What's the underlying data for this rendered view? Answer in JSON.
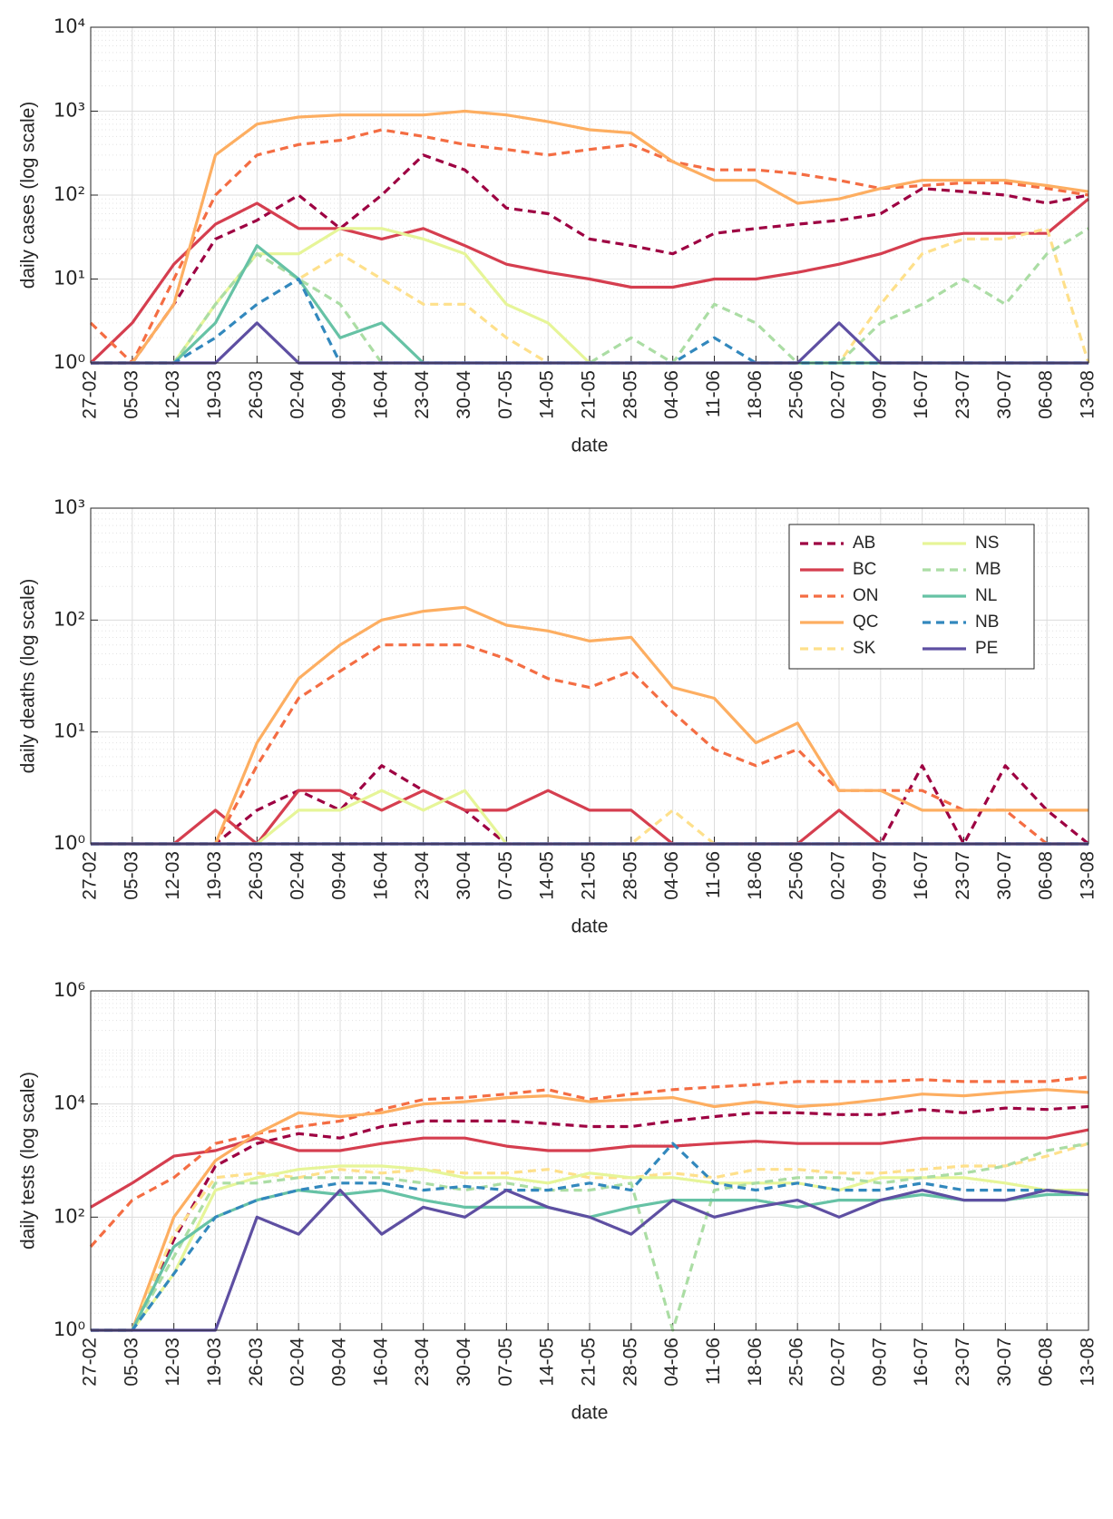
{
  "chart_data": [
    {
      "type": "line",
      "ylabel": "daily cases (log scale)",
      "xlabel": "date",
      "log": true,
      "grid": true,
      "categories": [
        "27-02",
        "05-03",
        "12-03",
        "19-03",
        "26-03",
        "02-04",
        "09-04",
        "16-04",
        "23-04",
        "30-04",
        "07-05",
        "14-05",
        "21-05",
        "28-05",
        "04-06",
        "11-06",
        "18-06",
        "25-06",
        "02-07",
        "09-07",
        "16-07",
        "23-07",
        "30-07",
        "06-08",
        "13-08"
      ],
      "ylim": [
        1,
        10000
      ],
      "yticks": [
        {
          "value": 1,
          "label": "10⁰"
        },
        {
          "value": 10,
          "label": "10¹"
        },
        {
          "value": 100,
          "label": "10²"
        },
        {
          "value": 1000,
          "label": "10³"
        },
        {
          "value": 10000,
          "label": "10⁴"
        }
      ],
      "series": [
        {
          "color": "#9e0142",
          "style": "dashed",
          "values": [
            1,
            1,
            5,
            30,
            50,
            100,
            40,
            100,
            300,
            200,
            70,
            60,
            30,
            25,
            20,
            35,
            40,
            45,
            50,
            60,
            120,
            110,
            100,
            80,
            100
          ]
        },
        {
          "color": "#d53e4f",
          "style": "solid",
          "values": [
            1,
            3,
            15,
            45,
            80,
            40,
            40,
            30,
            40,
            25,
            15,
            12,
            10,
            8,
            8,
            10,
            10,
            12,
            15,
            20,
            30,
            35,
            35,
            35,
            90
          ]
        },
        {
          "color": "#f46d43",
          "style": "dashed",
          "values": [
            3,
            1,
            10,
            100,
            300,
            400,
            450,
            600,
            500,
            400,
            350,
            300,
            350,
            400,
            250,
            200,
            200,
            180,
            150,
            120,
            130,
            140,
            140,
            120,
            100
          ]
        },
        {
          "color": "#fdae61",
          "style": "solid",
          "values": [
            1,
            1,
            5,
            300,
            700,
            850,
            900,
            900,
            900,
            1000,
            900,
            750,
            600,
            550,
            250,
            150,
            150,
            80,
            90,
            120,
            150,
            150,
            150,
            130,
            110
          ]
        },
        {
          "color": "#fee08b",
          "style": "dashed",
          "values": [
            1,
            1,
            1,
            5,
            20,
            10,
            20,
            10,
            5,
            5,
            2,
            1,
            1,
            1,
            1,
            1,
            1,
            1,
            1,
            5,
            20,
            30,
            30,
            40,
            1
          ]
        },
        {
          "color": "#e6f598",
          "style": "solid",
          "values": [
            1,
            1,
            1,
            5,
            20,
            20,
            40,
            40,
            30,
            20,
            5,
            3,
            1,
            1,
            1,
            1,
            1,
            1,
            1,
            1,
            1,
            1,
            1,
            1,
            1
          ]
        },
        {
          "color": "#abdda4",
          "style": "dashed",
          "values": [
            1,
            1,
            1,
            5,
            20,
            10,
            5,
            1,
            1,
            1,
            1,
            1,
            1,
            2,
            1,
            5,
            3,
            1,
            1,
            3,
            5,
            10,
            5,
            20,
            40
          ]
        },
        {
          "color": "#66c2a5",
          "style": "solid",
          "values": [
            1,
            1,
            1,
            3,
            25,
            10,
            2,
            3,
            1,
            1,
            1,
            1,
            1,
            1,
            1,
            1,
            1,
            1,
            1,
            1,
            1,
            1,
            1,
            1,
            1
          ]
        },
        {
          "color": "#3288bd",
          "style": "dashed",
          "values": [
            1,
            1,
            1,
            2,
            5,
            10,
            1,
            1,
            1,
            1,
            1,
            1,
            1,
            1,
            1,
            2,
            1,
            1,
            1,
            1,
            1,
            1,
            1,
            1,
            1
          ]
        },
        {
          "color": "#5e4fa2",
          "style": "solid",
          "values": [
            1,
            1,
            1,
            1,
            3,
            1,
            1,
            1,
            1,
            1,
            1,
            1,
            1,
            1,
            1,
            1,
            1,
            1,
            3,
            1,
            1,
            1,
            1,
            1,
            1
          ]
        }
      ]
    },
    {
      "type": "line",
      "ylabel": "daily deaths (log scale)",
      "xlabel": "date",
      "log": true,
      "grid": true,
      "legend": "upper right",
      "categories": [
        "27-02",
        "05-03",
        "12-03",
        "19-03",
        "26-03",
        "02-04",
        "09-04",
        "16-04",
        "23-04",
        "30-04",
        "07-05",
        "14-05",
        "21-05",
        "28-05",
        "04-06",
        "11-06",
        "18-06",
        "25-06",
        "02-07",
        "09-07",
        "16-07",
        "23-07",
        "30-07",
        "06-08",
        "13-08"
      ],
      "ylim": [
        1,
        1000
      ],
      "yticks": [
        {
          "value": 1,
          "label": "10⁰"
        },
        {
          "value": 10,
          "label": "10¹"
        },
        {
          "value": 100,
          "label": "10²"
        },
        {
          "value": 1000,
          "label": "10³"
        }
      ],
      "series": [
        {
          "name": "AB",
          "color": "#9e0142",
          "style": "dashed",
          "values": [
            1,
            1,
            1,
            1,
            2,
            3,
            2,
            5,
            3,
            2,
            1,
            1,
            1,
            1,
            1,
            1,
            1,
            1,
            1,
            1,
            5,
            1,
            5,
            2,
            1
          ]
        },
        {
          "name": "BC",
          "color": "#d53e4f",
          "style": "solid",
          "values": [
            1,
            1,
            1,
            2,
            1,
            3,
            3,
            2,
            3,
            2,
            2,
            3,
            2,
            2,
            1,
            1,
            1,
            1,
            2,
            1,
            1,
            1,
            1,
            1,
            1
          ]
        },
        {
          "name": "ON",
          "color": "#f46d43",
          "style": "dashed",
          "values": [
            1,
            1,
            1,
            1,
            5,
            20,
            35,
            60,
            60,
            60,
            45,
            30,
            25,
            35,
            15,
            7,
            5,
            7,
            3,
            3,
            3,
            2,
            2,
            1,
            1
          ]
        },
        {
          "name": "QC",
          "color": "#fdae61",
          "style": "solid",
          "values": [
            1,
            1,
            1,
            1,
            8,
            30,
            60,
            100,
            120,
            130,
            90,
            80,
            65,
            70,
            25,
            20,
            8,
            12,
            3,
            3,
            2,
            2,
            2,
            2,
            2
          ]
        },
        {
          "name": "SK",
          "color": "#fee08b",
          "style": "dashed",
          "values": [
            1,
            1,
            1,
            1,
            1,
            1,
            1,
            1,
            1,
            1,
            1,
            1,
            1,
            1,
            2,
            1,
            1,
            1,
            1,
            1,
            1,
            1,
            1,
            1,
            1
          ]
        },
        {
          "name": "NS",
          "color": "#e6f598",
          "style": "solid",
          "values": [
            1,
            1,
            1,
            1,
            1,
            2,
            2,
            3,
            2,
            3,
            1,
            1,
            1,
            1,
            1,
            1,
            1,
            1,
            1,
            1,
            1,
            1,
            1,
            1,
            1
          ]
        },
        {
          "name": "MB",
          "color": "#abdda4",
          "style": "dashed",
          "values": [
            1,
            1,
            1,
            1,
            1,
            1,
            1,
            1,
            1,
            1,
            1,
            1,
            1,
            1,
            1,
            1,
            1,
            1,
            1,
            1,
            1,
            1,
            1,
            1,
            1
          ]
        },
        {
          "name": "NL",
          "color": "#66c2a5",
          "style": "solid",
          "values": [
            1,
            1,
            1,
            1,
            1,
            1,
            1,
            1,
            1,
            1,
            1,
            1,
            1,
            1,
            1,
            1,
            1,
            1,
            1,
            1,
            1,
            1,
            1,
            1,
            1
          ]
        },
        {
          "name": "NB",
          "color": "#3288bd",
          "style": "dashed",
          "values": [
            1,
            1,
            1,
            1,
            1,
            1,
            1,
            1,
            1,
            1,
            1,
            1,
            1,
            1,
            1,
            1,
            1,
            1,
            1,
            1,
            1,
            1,
            1,
            1,
            1
          ]
        },
        {
          "name": "PE",
          "color": "#5e4fa2",
          "style": "solid",
          "values": [
            1,
            1,
            1,
            1,
            1,
            1,
            1,
            1,
            1,
            1,
            1,
            1,
            1,
            1,
            1,
            1,
            1,
            1,
            1,
            1,
            1,
            1,
            1,
            1,
            1
          ]
        }
      ]
    },
    {
      "type": "line",
      "ylabel": "daily tests (log scale)",
      "xlabel": "date",
      "log": true,
      "grid": true,
      "categories": [
        "27-02",
        "05-03",
        "12-03",
        "19-03",
        "26-03",
        "02-04",
        "09-04",
        "16-04",
        "23-04",
        "30-04",
        "07-05",
        "14-05",
        "21-05",
        "28-05",
        "04-06",
        "11-06",
        "18-06",
        "25-06",
        "02-07",
        "09-07",
        "16-07",
        "23-07",
        "30-07",
        "06-08",
        "13-08"
      ],
      "ylim": [
        1,
        1000000
      ],
      "yticks": [
        {
          "value": 1,
          "label": "10⁰"
        },
        {
          "value": 100,
          "label": "10²"
        },
        {
          "value": 10000,
          "label": "10⁴"
        },
        {
          "value": 1000000,
          "label": "10⁶"
        }
      ],
      "series": [
        {
          "color": "#9e0142",
          "style": "dashed",
          "values": [
            1,
            1,
            40,
            800,
            2000,
            3000,
            2500,
            4000,
            5000,
            5000,
            5000,
            4500,
            4000,
            4000,
            5000,
            6000,
            7000,
            7000,
            6500,
            6500,
            8000,
            7000,
            8500,
            8000,
            9000
          ]
        },
        {
          "color": "#d53e4f",
          "style": "solid",
          "values": [
            150,
            400,
            1200,
            1500,
            2500,
            1500,
            1500,
            2000,
            2500,
            2500,
            1800,
            1500,
            1500,
            1800,
            1800,
            2000,
            2200,
            2000,
            2000,
            2000,
            2500,
            2500,
            2500,
            2500,
            3500
          ]
        },
        {
          "color": "#f46d43",
          "style": "dashed",
          "values": [
            30,
            200,
            500,
            2000,
            3000,
            4000,
            5000,
            8000,
            12000,
            13000,
            15000,
            18000,
            12000,
            15000,
            18000,
            20000,
            22000,
            25000,
            25000,
            25000,
            27000,
            25000,
            25000,
            25000,
            30000
          ]
        },
        {
          "color": "#fdae61",
          "style": "solid",
          "values": [
            1,
            1,
            100,
            1000,
            3000,
            7000,
            6000,
            7000,
            10000,
            11000,
            13000,
            14000,
            11000,
            12000,
            13000,
            9000,
            11000,
            9000,
            10000,
            12000,
            15000,
            14000,
            16000,
            18000,
            16000
          ]
        },
        {
          "color": "#fee08b",
          "style": "dashed",
          "values": [
            1,
            1,
            50,
            500,
            600,
            500,
            700,
            600,
            700,
            600,
            600,
            700,
            500,
            500,
            600,
            500,
            700,
            700,
            600,
            600,
            700,
            800,
            800,
            1200,
            2000
          ]
        },
        {
          "color": "#e6f598",
          "style": "solid",
          "values": [
            1,
            1,
            10,
            300,
            500,
            700,
            800,
            800,
            700,
            500,
            500,
            400,
            600,
            500,
            500,
            400,
            400,
            400,
            300,
            500,
            500,
            500,
            400,
            300,
            300
          ]
        },
        {
          "color": "#abdda4",
          "style": "dashed",
          "values": [
            1,
            1,
            20,
            400,
            400,
            500,
            500,
            500,
            400,
            300,
            400,
            300,
            300,
            400,
            1,
            300,
            400,
            500,
            500,
            400,
            500,
            600,
            800,
            1500,
            2000
          ]
        },
        {
          "color": "#66c2a5",
          "style": "solid",
          "values": [
            1,
            1,
            30,
            100,
            200,
            300,
            250,
            300,
            200,
            150,
            150,
            150,
            100,
            150,
            200,
            200,
            200,
            150,
            200,
            200,
            250,
            200,
            200,
            250,
            250
          ]
        },
        {
          "color": "#3288bd",
          "style": "dashed",
          "values": [
            1,
            1,
            10,
            100,
            200,
            300,
            400,
            400,
            300,
            350,
            300,
            300,
            400,
            300,
            2000,
            400,
            300,
            400,
            300,
            300,
            400,
            300,
            300,
            300,
            250
          ]
        },
        {
          "color": "#5e4fa2",
          "style": "solid",
          "values": [
            1,
            1,
            1,
            1,
            100,
            50,
            300,
            50,
            150,
            100,
            300,
            150,
            100,
            50,
            200,
            100,
            150,
            200,
            100,
            200,
            300,
            200,
            200,
            300,
            250
          ]
        }
      ]
    }
  ]
}
